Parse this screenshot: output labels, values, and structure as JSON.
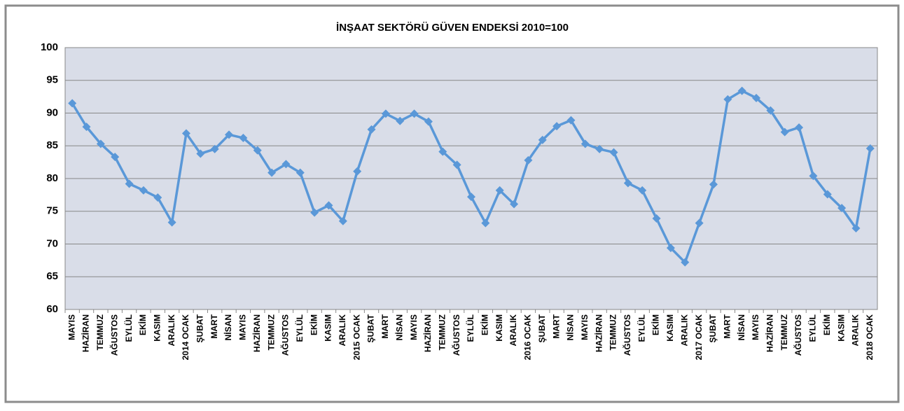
{
  "chart_data": {
    "type": "line",
    "title": "İNŞAAT SEKTÖRÜ GÜVEN ENDEKSİ 2010=100",
    "categories": [
      "MAYIS",
      "HAZİRAN",
      "TEMMUZ",
      "AĞUSTOS",
      "EYLÜL",
      "EKİM",
      "KASIM",
      "ARALIK",
      "2014 OCAK",
      "ŞUBAT",
      "MART",
      "NİSAN",
      "MAYIS",
      "HAZİRAN",
      "TEMMUZ",
      "AĞUSTOS",
      "EYLÜL",
      "EKİM",
      "KASIM",
      "ARALIK",
      "2015 OCAK",
      "ŞUBAT",
      "MART",
      "NİSAN",
      "MAYIS",
      "HAZİRAN",
      "TEMMUZ",
      "AĞUSTOS",
      "EYLÜL",
      "EKİM",
      "KASIM",
      "ARALIK",
      "2016 OCAK",
      "ŞUBAT",
      "MART",
      "NİSAN",
      "MAYIS",
      "HAZİRAN",
      "TEMMUZ",
      "AĞUSTOS",
      "EYLÜL",
      "EKİM",
      "KASIM",
      "ARALIK",
      "2017 OCAK",
      "ŞUBAT",
      "MART",
      "NİSAN",
      "MAYIS",
      "HAZİRAN",
      "TEMMUZ",
      "AĞUSTOS",
      "EYLÜL",
      "EKİM",
      "KASIM",
      "ARALIK",
      "2018 OCAK"
    ],
    "values": [
      91.5,
      87.9,
      85.3,
      83.3,
      79.2,
      78.2,
      77.1,
      73.3,
      86.9,
      83.8,
      84.5,
      86.7,
      86.2,
      84.3,
      80.9,
      82.2,
      80.9,
      74.8,
      75.9,
      73.5,
      81.1,
      87.5,
      89.9,
      88.8,
      89.9,
      88.7,
      84.1,
      82.1,
      77.2,
      73.2,
      78.2,
      76.1,
      82.8,
      85.9,
      88.0,
      88.9,
      85.3,
      84.5,
      84.0,
      79.3,
      78.2,
      73.9,
      69.4,
      67.2,
      73.2,
      79.1,
      92.1,
      93.4,
      92.3,
      90.4,
      87.1,
      87.8,
      80.4,
      77.6,
      75.5,
      72.4,
      84.6
    ],
    "color": "#5a98d8",
    "ylim": [
      60,
      100
    ],
    "yticks": [
      60,
      65,
      70,
      75,
      80,
      85,
      90,
      95,
      100
    ],
    "grid": true
  }
}
